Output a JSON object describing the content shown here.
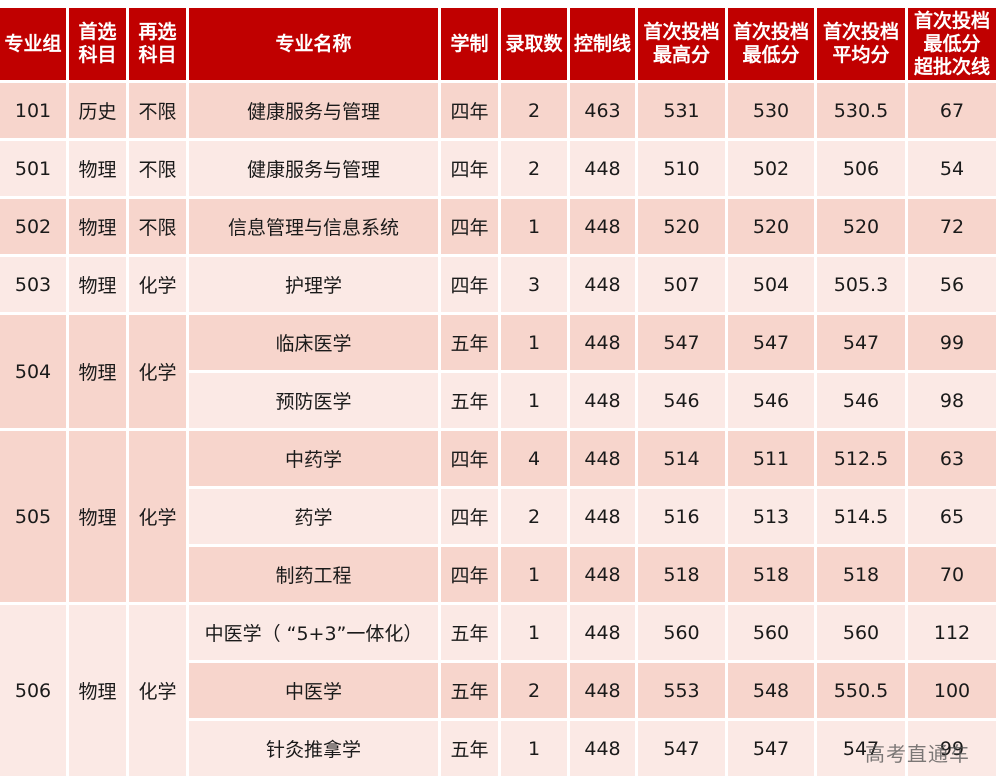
{
  "headers": [
    {
      "lines": [
        "专业组"
      ]
    },
    {
      "lines": [
        "首选",
        "科目"
      ]
    },
    {
      "lines": [
        "再选",
        "科目"
      ]
    },
    {
      "lines": [
        "专业名称"
      ]
    },
    {
      "lines": [
        "学制"
      ]
    },
    {
      "lines": [
        "录取数"
      ]
    },
    {
      "lines": [
        "控制线"
      ]
    },
    {
      "lines": [
        "首次投档",
        "最高分"
      ]
    },
    {
      "lines": [
        "首次投档",
        "最低分"
      ]
    },
    {
      "lines": [
        "首次投档",
        "平均分"
      ]
    },
    {
      "lines": [
        "首次投档",
        "最低分",
        "超批次线"
      ]
    }
  ],
  "groups": [
    {
      "group": "101",
      "first": "历史",
      "second": "不限",
      "rows": [
        {
          "major": "健康服务与管理",
          "years": "四年",
          "admit": "2",
          "control": "463",
          "max": "531",
          "min": "530",
          "avg": "530.5",
          "over": "67"
        }
      ]
    },
    {
      "group": "501",
      "first": "物理",
      "second": "不限",
      "rows": [
        {
          "major": "健康服务与管理",
          "years": "四年",
          "admit": "2",
          "control": "448",
          "max": "510",
          "min": "502",
          "avg": "506",
          "over": "54"
        }
      ]
    },
    {
      "group": "502",
      "first": "物理",
      "second": "不限",
      "rows": [
        {
          "major": "信息管理与信息系统",
          "years": "四年",
          "admit": "1",
          "control": "448",
          "max": "520",
          "min": "520",
          "avg": "520",
          "over": "72"
        }
      ]
    },
    {
      "group": "503",
      "first": "物理",
      "second": "化学",
      "rows": [
        {
          "major": "护理学",
          "years": "四年",
          "admit": "3",
          "control": "448",
          "max": "507",
          "min": "504",
          "avg": "505.3",
          "over": "56"
        }
      ]
    },
    {
      "group": "504",
      "first": "物理",
      "second": "化学",
      "rows": [
        {
          "major": "临床医学",
          "years": "五年",
          "admit": "1",
          "control": "448",
          "max": "547",
          "min": "547",
          "avg": "547",
          "over": "99"
        },
        {
          "major": "预防医学",
          "years": "五年",
          "admit": "1",
          "control": "448",
          "max": "546",
          "min": "546",
          "avg": "546",
          "over": "98"
        }
      ]
    },
    {
      "group": "505",
      "first": "物理",
      "second": "化学",
      "rows": [
        {
          "major": "中药学",
          "years": "四年",
          "admit": "4",
          "control": "448",
          "max": "514",
          "min": "511",
          "avg": "512.5",
          "over": "63"
        },
        {
          "major": "药学",
          "years": "四年",
          "admit": "2",
          "control": "448",
          "max": "516",
          "min": "513",
          "avg": "514.5",
          "over": "65"
        },
        {
          "major": "制药工程",
          "years": "四年",
          "admit": "1",
          "control": "448",
          "max": "518",
          "min": "518",
          "avg": "518",
          "over": "70"
        }
      ]
    },
    {
      "group": "506",
      "first": "物理",
      "second": "化学",
      "rows": [
        {
          "major": "中医学（ “5+3”一体化）",
          "years": "五年",
          "admit": "1",
          "control": "448",
          "max": "560",
          "min": "560",
          "avg": "560",
          "over": "112"
        },
        {
          "major": "中医学",
          "years": "五年",
          "admit": "2",
          "control": "448",
          "max": "553",
          "min": "548",
          "avg": "550.5",
          "over": "100"
        },
        {
          "major": "针灸推拿学",
          "years": "五年",
          "admit": "1",
          "control": "448",
          "max": "547",
          "min": "547",
          "avg": "547",
          "over": "99"
        }
      ]
    }
  ],
  "watermark": "高考直通车",
  "colors": {
    "header": "#c00000",
    "row_dark": "#f7d5cc",
    "row_light": "#fbe9e5"
  }
}
